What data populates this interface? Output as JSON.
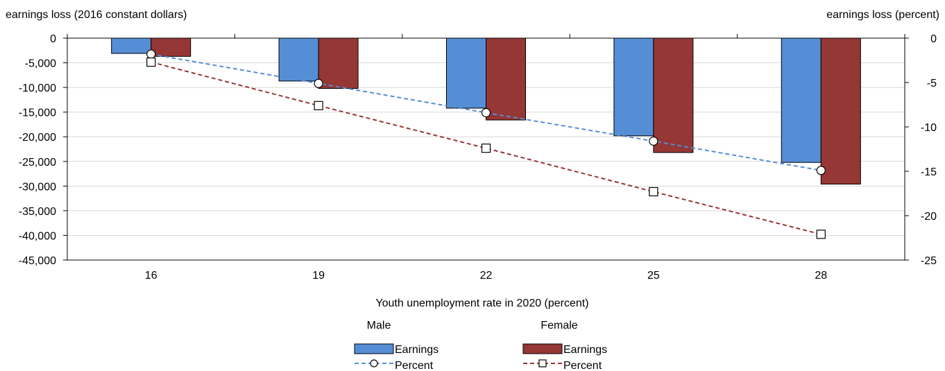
{
  "chart_data": {
    "type": "bar",
    "xlabel": "Youth unemployment rate in 2020 (percent)",
    "ylabel_left": "earnings loss (2016 constant dollars)",
    "ylabel_right": "earnings loss (percent)",
    "categories": [
      "16",
      "19",
      "22",
      "25",
      "28"
    ],
    "y_left_lim": [
      -45000,
      0
    ],
    "y_left_ticks": [
      0,
      -5000,
      -10000,
      -15000,
      -20000,
      -25000,
      -30000,
      -35000,
      -40000,
      -45000
    ],
    "y_left_tick_labels": [
      "0",
      "-5,000",
      "-10,000",
      "-15,000",
      "-20,000",
      "-25,000",
      "-30,000",
      "-35,000",
      "-40,000",
      "-45,000"
    ],
    "y_right_lim": [
      -25,
      0
    ],
    "y_right_ticks": [
      0,
      -5,
      -10,
      -15,
      -20,
      -25
    ],
    "y_right_tick_labels": [
      "0",
      "-5",
      "-10",
      "-15",
      "-20",
      "-25"
    ],
    "grid": true,
    "legend_position": "bottom",
    "groups": [
      {
        "name": "Male",
        "color": "#558ED5",
        "line_color": "#558ED5",
        "marker": "circle"
      },
      {
        "name": "Female",
        "color": "#953735",
        "line_color": "#953735",
        "marker": "square"
      }
    ],
    "series": [
      {
        "name": "Earnings",
        "group": "Male",
        "type": "bar",
        "axis": "left",
        "color": "#558ED5",
        "values": [
          -3100,
          -8700,
          -14200,
          -19800,
          -25200
        ]
      },
      {
        "name": "Earnings",
        "group": "Female",
        "type": "bar",
        "axis": "left",
        "color": "#953735",
        "values": [
          -3700,
          -10200,
          -16600,
          -23200,
          -29600
        ]
      },
      {
        "name": "Percent",
        "group": "Male",
        "type": "line",
        "axis": "right",
        "color": "#558ED5",
        "marker": "circle",
        "values": [
          -1.8,
          -5.1,
          -8.4,
          -11.6,
          -14.9
        ]
      },
      {
        "name": "Percent",
        "group": "Female",
        "type": "line",
        "axis": "right",
        "color": "#953735",
        "marker": "square",
        "values": [
          -2.7,
          -7.6,
          -12.4,
          -17.3,
          -22.1
        ]
      }
    ]
  }
}
